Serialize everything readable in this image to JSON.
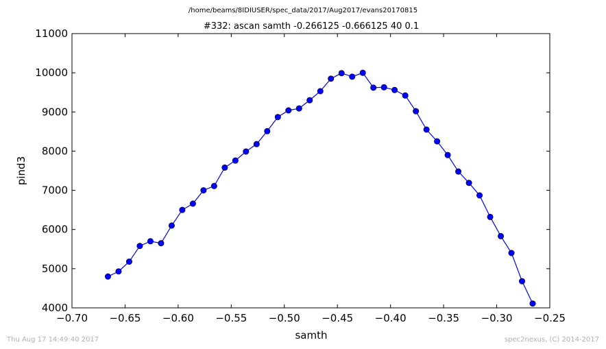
{
  "header": {
    "path": "/home/beams/8IDIUSER/spec_data/2017/Aug2017/evans20170815"
  },
  "footer": {
    "timestamp": "Thu Aug 17 14:49:40 2017",
    "credit": "spec2nexus, (C) 2014-2017"
  },
  "chart_data": {
    "type": "line",
    "title": "#332: ascan  samth -0.266125 -0.666125  40 0.1",
    "xlabel": "samth",
    "ylabel": "pind3",
    "xlim": [
      -0.7,
      -0.25
    ],
    "ylim": [
      4000,
      11000
    ],
    "xticks": [
      -0.7,
      -0.65,
      -0.6,
      -0.55,
      -0.5,
      -0.45,
      -0.4,
      -0.35,
      -0.3,
      -0.25
    ],
    "xtick_labels": [
      "−0.70",
      "−0.65",
      "−0.60",
      "−0.55",
      "−0.50",
      "−0.45",
      "−0.40",
      "−0.35",
      "−0.30",
      "−0.25"
    ],
    "yticks": [
      4000,
      5000,
      6000,
      7000,
      8000,
      9000,
      10000,
      11000
    ],
    "ytick_labels": [
      "4000",
      "5000",
      "6000",
      "7000",
      "8000",
      "9000",
      "10000",
      "11000"
    ],
    "grid": false,
    "line_color": "#0000ff",
    "marker": "circle",
    "series": [
      {
        "x": [
          -0.666125,
          -0.656125,
          -0.646125,
          -0.636125,
          -0.626125,
          -0.616125,
          -0.606125,
          -0.596125,
          -0.586125,
          -0.576125,
          -0.566125,
          -0.556125,
          -0.546125,
          -0.536125,
          -0.526125,
          -0.516125,
          -0.506125,
          -0.496125,
          -0.486125,
          -0.476125,
          -0.466125,
          -0.456125,
          -0.446125,
          -0.436125,
          -0.426125,
          -0.416125,
          -0.406125,
          -0.396125,
          -0.386125,
          -0.376125,
          -0.366125,
          -0.356125,
          -0.346125,
          -0.336125,
          -0.326125,
          -0.316125,
          -0.306125,
          -0.296125,
          -0.286125,
          -0.276125,
          -0.266125
        ],
        "y": [
          4800,
          4930,
          5180,
          5580,
          5700,
          5650,
          6100,
          6500,
          6660,
          7000,
          7110,
          7580,
          7760,
          7990,
          8180,
          8510,
          8870,
          9040,
          9090,
          9300,
          9530,
          9850,
          9990,
          9900,
          10000,
          9620,
          9630,
          9560,
          9420,
          9020,
          8550,
          8250,
          7900,
          7480,
          7190,
          6870,
          6320,
          5830,
          5400,
          4680,
          4110
        ]
      }
    ]
  }
}
